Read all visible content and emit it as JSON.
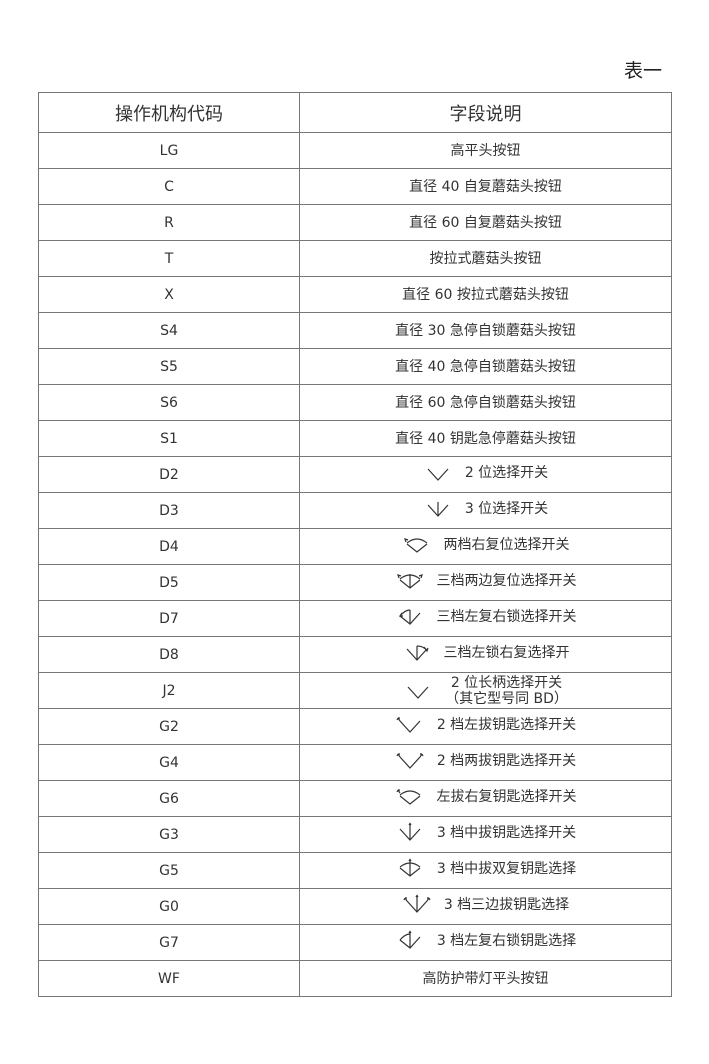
{
  "caption": "表一",
  "headers": [
    "操作机构代码",
    "字段说明"
  ],
  "rows": [
    {
      "code": "LG",
      "desc": "高平头按钮"
    },
    {
      "code": "C",
      "desc": "直径 40 自复蘑菇头按钮"
    },
    {
      "code": "R",
      "desc": "直径 60 自复蘑菇头按钮"
    },
    {
      "code": "T",
      "desc": "按拉式蘑菇头按钮"
    },
    {
      "code": "X",
      "desc": "直径 60 按拉式蘑菇头按钮"
    },
    {
      "code": "S4",
      "desc": "直径 30 急停自锁蘑菇头按钮"
    },
    {
      "code": "S5",
      "desc": "直径 40 急停自锁蘑菇头按钮"
    },
    {
      "code": "S6",
      "desc": "直径 60 急停自锁蘑菇头按钮"
    },
    {
      "code": "S1",
      "desc": "直径 40 钥匙急停蘑菇头按钮"
    },
    {
      "code": "D2",
      "desc": "2 位选择开关",
      "icon": "two-position-v-icon"
    },
    {
      "code": "D3",
      "desc": "3 位选择开关",
      "icon": "three-position-v-icon"
    },
    {
      "code": "D4",
      "desc": "两档右复位选择开关",
      "icon": "right-return-arc-icon"
    },
    {
      "code": "D5",
      "desc": "三档两边复位选择开关",
      "icon": "both-return-arc-icon"
    },
    {
      "code": "D7",
      "desc": "三档左复右锁选择开关",
      "icon": "left-return-arc-icon"
    },
    {
      "code": "D8",
      "desc": "三档左锁右复选择开",
      "icon": "right-return-three-icon"
    },
    {
      "code": "J2",
      "desc": "2 位长柄选择开关",
      "desc2": "（其它型号同 BD）",
      "icon": "two-position-v-icon"
    },
    {
      "code": "G2",
      "desc": "2 档左拔钥匙选择开关",
      "icon": "key-left-v-icon"
    },
    {
      "code": "G4",
      "desc": "2 档两拔钥匙选择开关",
      "icon": "key-both-v-icon"
    },
    {
      "code": "G6",
      "desc": "左拔右复钥匙选择开关",
      "icon": "key-left-arc-icon"
    },
    {
      "code": "G3",
      "desc": "3 档中拔钥匙选择开关",
      "icon": "key-middle-three-icon"
    },
    {
      "code": "G5",
      "desc": "3 档中拔双复钥匙选择",
      "icon": "key-middle-arc-icon"
    },
    {
      "code": "G0",
      "desc": "3 档三边拔钥匙选择",
      "icon": "key-all-three-icon"
    },
    {
      "code": "G7",
      "desc": "3 档左复右锁钥匙选择",
      "icon": "key-left-return-icon"
    },
    {
      "code": "WF",
      "desc": "高防护带灯平头按钮"
    }
  ]
}
